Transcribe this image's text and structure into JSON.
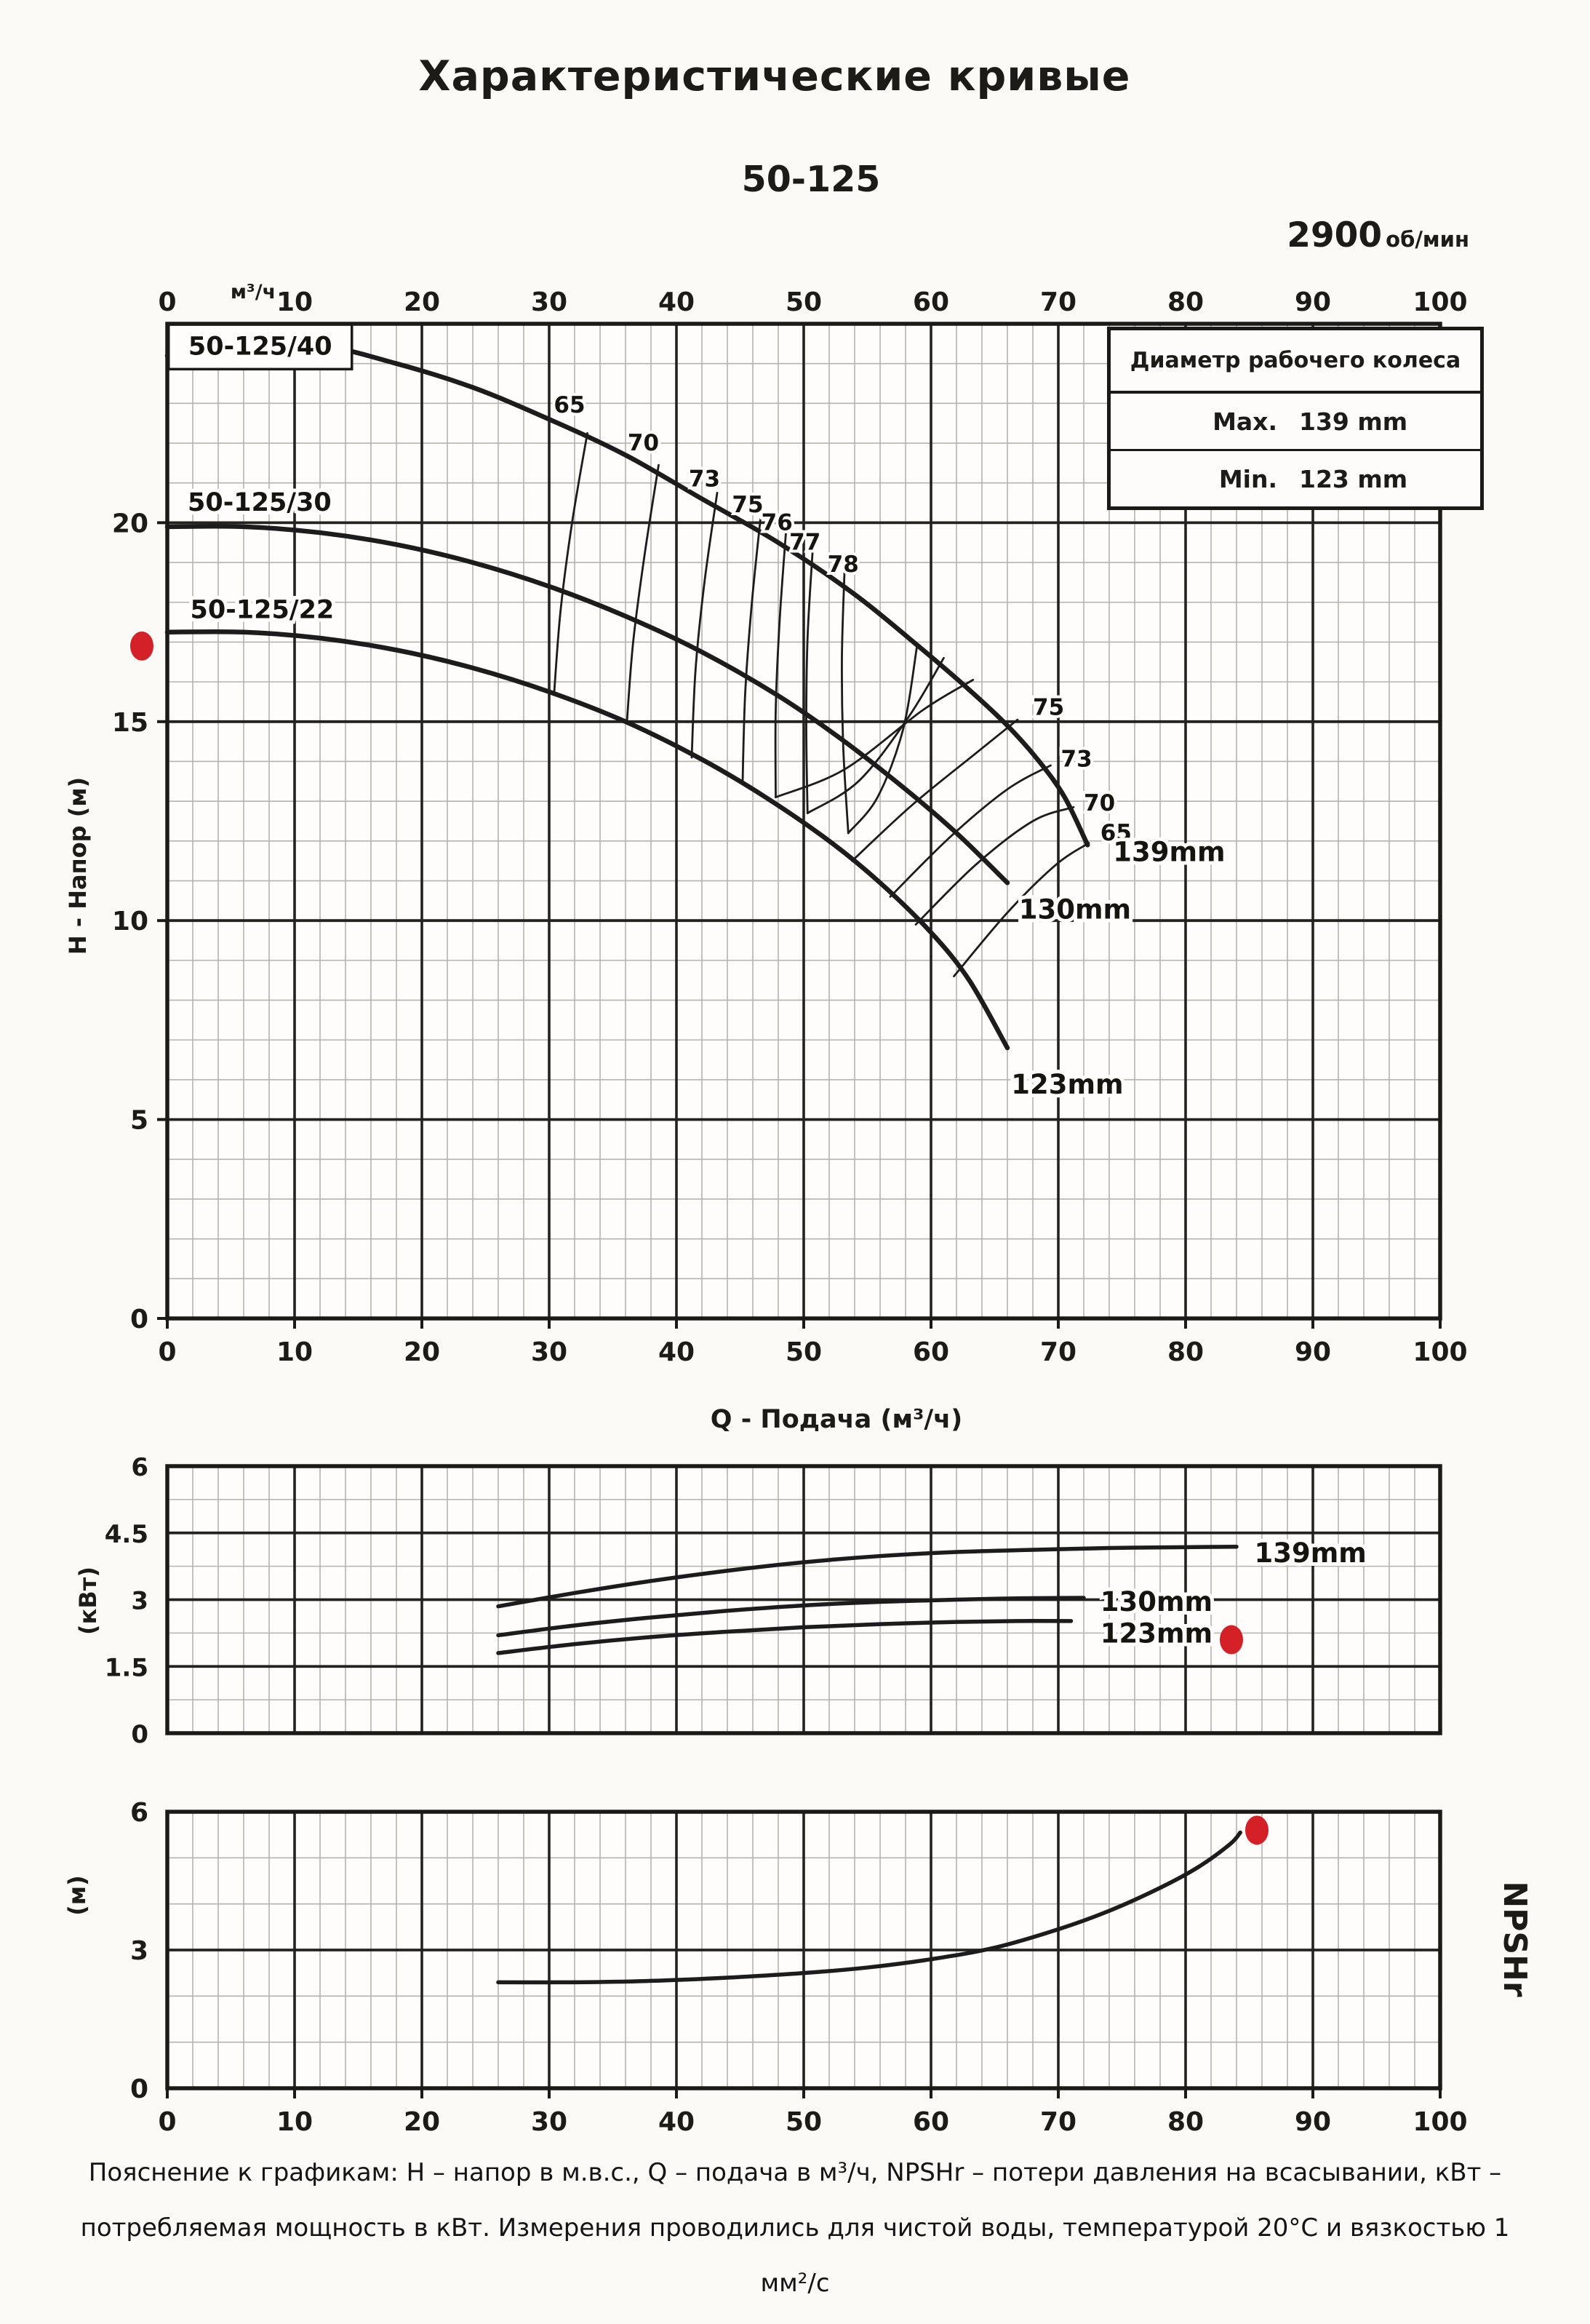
{
  "header": {
    "title": "Характеристические кривые",
    "model": "50-125",
    "rpm_value": "2900",
    "rpm_unit": "об/мин"
  },
  "impeller_table": {
    "header": "Диаметр рабочего колеса",
    "rows": [
      {
        "label": "Max.",
        "value": "139 mm"
      },
      {
        "label": "Min.",
        "value": "123 mm"
      }
    ]
  },
  "footnote_lines": [
    "Пояснение к графикам: H – напор в м.в.с., Q – подача в м³/ч, NPSHr – потери давления на всасывании, кВт –",
    "потребляемая мощность в кВт. Измерения проводились для чистой воды, температурой 20°C и вязкостью 1",
    "мм²/с"
  ],
  "colors": {
    "accent_red": "#d42127",
    "curve": "#1c1c1c",
    "grid_minor": "#b5b3ae",
    "grid_major": "#24221f",
    "spine": "#1b1a17",
    "plot_bg": "#fefdfb"
  },
  "chart_data": [
    {
      "id": "hq",
      "type": "line",
      "title": "Насосные характеристики H-Q",
      "xlabel": "Q - Подача (м³/ч)",
      "ylabel": "H - Напор (м)",
      "x_unit_label": "м³/ч",
      "xlim": [
        0,
        100
      ],
      "ylim": [
        0,
        25
      ],
      "x_ticks": [
        0,
        10,
        20,
        30,
        40,
        50,
        60,
        70,
        80,
        90,
        100
      ],
      "y_ticks": [
        0,
        5,
        10,
        15,
        20
      ],
      "x_major_step": 10,
      "x_minor_step": 2,
      "y_major_values": [
        5,
        10,
        15,
        20
      ],
      "y_minor_values": [
        1,
        2,
        3,
        4,
        6,
        7,
        8,
        9,
        11,
        12,
        13,
        14,
        16,
        17,
        18,
        19,
        21,
        22,
        23,
        24
      ],
      "tick_labels_top": true,
      "tick_labels_bottom": true,
      "series": [
        {
          "name": "head-curve-139mm-50-125-40",
          "width": "thick",
          "points": [
            [
              0,
              24.2
            ],
            [
              6,
              24.4
            ],
            [
              12,
              24.45
            ],
            [
              18,
              24.0
            ],
            [
              24,
              23.4
            ],
            [
              30,
              22.6
            ],
            [
              36,
              21.7
            ],
            [
              42,
              20.6
            ],
            [
              48,
              19.5
            ],
            [
              54,
              18.2
            ],
            [
              59,
              16.9
            ],
            [
              63,
              15.8
            ],
            [
              66,
              14.9
            ],
            [
              68.5,
              14.0
            ],
            [
              70.5,
              13.1
            ],
            [
              72.3,
              11.9
            ]
          ]
        },
        {
          "name": "head-curve-130mm-50-125-30",
          "width": "thick",
          "points": [
            [
              0,
              19.9
            ],
            [
              6,
              19.9
            ],
            [
              12,
              19.75
            ],
            [
              18,
              19.45
            ],
            [
              24,
              19.0
            ],
            [
              30,
              18.4
            ],
            [
              36,
              17.65
            ],
            [
              42,
              16.75
            ],
            [
              48,
              15.65
            ],
            [
              53,
              14.55
            ],
            [
              58,
              13.3
            ],
            [
              62,
              12.2
            ],
            [
              66,
              10.95
            ]
          ]
        },
        {
          "name": "head-curve-123mm-50-125-22",
          "width": "thick",
          "points": [
            [
              0,
              17.25
            ],
            [
              6,
              17.25
            ],
            [
              12,
              17.1
            ],
            [
              18,
              16.8
            ],
            [
              24,
              16.35
            ],
            [
              30,
              15.75
            ],
            [
              36,
              15.0
            ],
            [
              42,
              14.05
            ],
            [
              47,
              13.1
            ],
            [
              52,
              12.0
            ],
            [
              56,
              10.95
            ],
            [
              60,
              9.7
            ],
            [
              63,
              8.5
            ],
            [
              66,
              6.8
            ]
          ]
        },
        {
          "name": "efficiency-65-left",
          "width": "thin",
          "points": [
            [
              33,
              22.25
            ],
            [
              31.8,
              20.0
            ],
            [
              30.9,
              17.8
            ],
            [
              30.4,
              15.75
            ]
          ]
        },
        {
          "name": "efficiency-70-left",
          "width": "thin",
          "points": [
            [
              38.6,
              21.45
            ],
            [
              37.5,
              19.2
            ],
            [
              36.6,
              17.0
            ],
            [
              36.1,
              14.95
            ]
          ]
        },
        {
          "name": "efficiency-73-left",
          "width": "thin",
          "points": [
            [
              43.2,
              20.75
            ],
            [
              42.2,
              18.5
            ],
            [
              41.5,
              16.3
            ],
            [
              41.2,
              14.1
            ]
          ]
        },
        {
          "name": "efficiency-75-left",
          "width": "thin",
          "points": [
            [
              46.6,
              20.1
            ],
            [
              45.9,
              17.9
            ],
            [
              45.4,
              15.7
            ],
            [
              45.2,
              13.5
            ]
          ]
        },
        {
          "name": "efficiency-76-left",
          "width": "thin",
          "points": [
            [
              48.6,
              19.75
            ],
            [
              48.1,
              17.5
            ],
            [
              47.8,
              15.3
            ],
            [
              47.8,
              13.1
            ]
          ]
        },
        {
          "name": "efficiency-77-left",
          "width": "thin",
          "points": [
            [
              50.7,
              19.3
            ],
            [
              50.3,
              17.1
            ],
            [
              50.2,
              14.9
            ],
            [
              50.3,
              12.7
            ]
          ]
        },
        {
          "name": "efficiency-78-left",
          "width": "thin",
          "points": [
            [
              53.2,
              18.75
            ],
            [
              53.0,
              16.6
            ],
            [
              53.1,
              14.4
            ],
            [
              53.5,
              12.2
            ]
          ]
        },
        {
          "name": "efficiency-78-right",
          "width": "thin",
          "points": [
            [
              53.5,
              12.2
            ],
            [
              55.8,
              13.1
            ],
            [
              57.8,
              14.8
            ],
            [
              58.9,
              16.9
            ]
          ]
        },
        {
          "name": "efficiency-77-right",
          "width": "thin",
          "points": [
            [
              50.3,
              12.7
            ],
            [
              54.3,
              13.5
            ],
            [
              58.2,
              15.1
            ],
            [
              61.0,
              16.6
            ]
          ]
        },
        {
          "name": "efficiency-76-right",
          "width": "thin",
          "points": [
            [
              47.8,
              13.1
            ],
            [
              53.2,
              13.8
            ],
            [
              59.4,
              15.3
            ],
            [
              63.3,
              16.05
            ]
          ]
        },
        {
          "name": "efficiency-75-right",
          "width": "thin",
          "points": [
            [
              53.8,
              11.5
            ],
            [
              58.5,
              12.9
            ],
            [
              63.5,
              14.2
            ],
            [
              66.8,
              15.05
            ]
          ]
        },
        {
          "name": "efficiency-73-right",
          "width": "thin",
          "points": [
            [
              56.8,
              10.6
            ],
            [
              61.5,
              12.1
            ],
            [
              66.0,
              13.3
            ],
            [
              69.4,
              13.9
            ]
          ]
        },
        {
          "name": "efficiency-70-right",
          "width": "thin",
          "points": [
            [
              58.8,
              9.9
            ],
            [
              63.5,
              11.4
            ],
            [
              68.0,
              12.5
            ],
            [
              71.2,
              12.85
            ]
          ]
        },
        {
          "name": "efficiency-65-right",
          "width": "thin",
          "points": [
            [
              61.8,
              8.6
            ],
            [
              66.0,
              10.2
            ],
            [
              69.8,
              11.4
            ],
            [
              72.4,
              11.95
            ]
          ]
        }
      ],
      "annotations": [
        {
          "text": "50-125/40",
          "x": 7.3,
          "y": 24.42,
          "style": "model-box",
          "w": 14.4,
          "h": 1.12
        },
        {
          "text": "50-125/30",
          "x": 1.6,
          "y": 20.5,
          "style": "model",
          "anchor": "start"
        },
        {
          "text": "50-125/22",
          "x": 1.8,
          "y": 17.8,
          "style": "model",
          "anchor": "start"
        },
        {
          "text": "65",
          "x": 31.6,
          "y": 22.95,
          "style": "eff"
        },
        {
          "text": "70",
          "x": 37.4,
          "y": 22.0,
          "style": "eff"
        },
        {
          "text": "73",
          "x": 42.2,
          "y": 21.1,
          "style": "eff"
        },
        {
          "text": "75",
          "x": 45.6,
          "y": 20.45,
          "style": "eff"
        },
        {
          "text": "76",
          "x": 47.9,
          "y": 20.0,
          "style": "eff"
        },
        {
          "text": "77",
          "x": 50.1,
          "y": 19.5,
          "style": "eff"
        },
        {
          "text": "78",
          "x": 53.1,
          "y": 18.95,
          "style": "eff"
        },
        {
          "text": "75",
          "x": 68.0,
          "y": 15.35,
          "style": "eff",
          "anchor": "start"
        },
        {
          "text": "73",
          "x": 70.2,
          "y": 14.05,
          "style": "eff",
          "anchor": "start"
        },
        {
          "text": "70",
          "x": 72.0,
          "y": 12.95,
          "style": "eff",
          "anchor": "start"
        },
        {
          "text": "65",
          "x": 73.3,
          "y": 12.2,
          "style": "eff",
          "anchor": "start"
        },
        {
          "text": "139mm",
          "x": 74.3,
          "y": 11.72,
          "style": "dia",
          "anchor": "start"
        },
        {
          "text": "130mm",
          "x": 66.9,
          "y": 10.28,
          "style": "dia",
          "anchor": "start"
        },
        {
          "text": "123mm",
          "x": 66.3,
          "y": 5.88,
          "style": "dia",
          "anchor": "start"
        }
      ],
      "markers": [
        {
          "x": -2,
          "y": 16.9
        }
      ]
    },
    {
      "id": "power",
      "type": "line",
      "title": "Потребляемая мощность",
      "ylabel": "(кВт)",
      "xlim": [
        0,
        100
      ],
      "ylim": [
        0,
        6
      ],
      "x_ticks": [],
      "y_ticks": [
        0,
        1.5,
        3,
        4.5,
        6
      ],
      "x_major_step": 10,
      "x_minor_step": 2,
      "y_major_values": [
        1.5,
        3,
        4.5
      ],
      "y_minor_values": [
        0.75,
        2.25,
        3.75,
        5.25
      ],
      "tick_labels_top": false,
      "tick_labels_bottom": false,
      "series": [
        {
          "name": "power-curve-139mm",
          "width": "mid",
          "points": [
            [
              26,
              2.85
            ],
            [
              32,
              3.15
            ],
            [
              38,
              3.42
            ],
            [
              44,
              3.65
            ],
            [
              50,
              3.84
            ],
            [
              56,
              3.98
            ],
            [
              62,
              4.07
            ],
            [
              68,
              4.12
            ],
            [
              74,
              4.16
            ],
            [
              80,
              4.18
            ],
            [
              84,
              4.19
            ]
          ]
        },
        {
          "name": "power-curve-130mm",
          "width": "mid",
          "points": [
            [
              26,
              2.2
            ],
            [
              32,
              2.42
            ],
            [
              38,
              2.6
            ],
            [
              44,
              2.75
            ],
            [
              50,
              2.87
            ],
            [
              56,
              2.95
            ],
            [
              62,
              3.0
            ],
            [
              67,
              3.03
            ],
            [
              72,
              3.04
            ]
          ]
        },
        {
          "name": "power-curve-123mm",
          "width": "mid",
          "points": [
            [
              26,
              1.8
            ],
            [
              32,
              2.0
            ],
            [
              38,
              2.16
            ],
            [
              44,
              2.28
            ],
            [
              50,
              2.38
            ],
            [
              56,
              2.45
            ],
            [
              62,
              2.5
            ],
            [
              67,
              2.52
            ],
            [
              71,
              2.52
            ]
          ]
        }
      ],
      "annotations": [
        {
          "text": "139mm",
          "x": 85.4,
          "y": 4.05,
          "style": "dia",
          "anchor": "start"
        },
        {
          "text": "130mm",
          "x": 73.3,
          "y": 2.95,
          "style": "dia",
          "anchor": "start"
        },
        {
          "text": "123mm",
          "x": 73.3,
          "y": 2.24,
          "style": "dia",
          "anchor": "start"
        }
      ],
      "markers": [
        {
          "x": 83.6,
          "y": 2.1
        }
      ]
    },
    {
      "id": "npsh",
      "type": "line",
      "title": "NPSHr",
      "ylabel": "(м)",
      "right_label": "NPSHr",
      "xlim": [
        0,
        100
      ],
      "ylim": [
        0,
        6
      ],
      "x_ticks": [
        0,
        10,
        20,
        30,
        40,
        50,
        60,
        70,
        80,
        90,
        100
      ],
      "y_ticks": [
        0,
        3,
        6
      ],
      "x_major_step": 10,
      "x_minor_step": 2,
      "y_major_values": [
        3
      ],
      "y_minor_values": [
        1,
        2,
        4,
        5
      ],
      "tick_labels_top": false,
      "tick_labels_bottom": true,
      "series": [
        {
          "name": "npshr-curve",
          "width": "mid",
          "points": [
            [
              26,
              2.3
            ],
            [
              32,
              2.3
            ],
            [
              38,
              2.33
            ],
            [
              44,
              2.4
            ],
            [
              50,
              2.5
            ],
            [
              55,
              2.62
            ],
            [
              60,
              2.8
            ],
            [
              65,
              3.05
            ],
            [
              70,
              3.45
            ],
            [
              74,
              3.85
            ],
            [
              78,
              4.35
            ],
            [
              81,
              4.8
            ],
            [
              83.5,
              5.3
            ],
            [
              84.3,
              5.55
            ]
          ]
        }
      ],
      "annotations": [],
      "markers": [
        {
          "x": 85.6,
          "y": 5.6
        }
      ]
    }
  ]
}
